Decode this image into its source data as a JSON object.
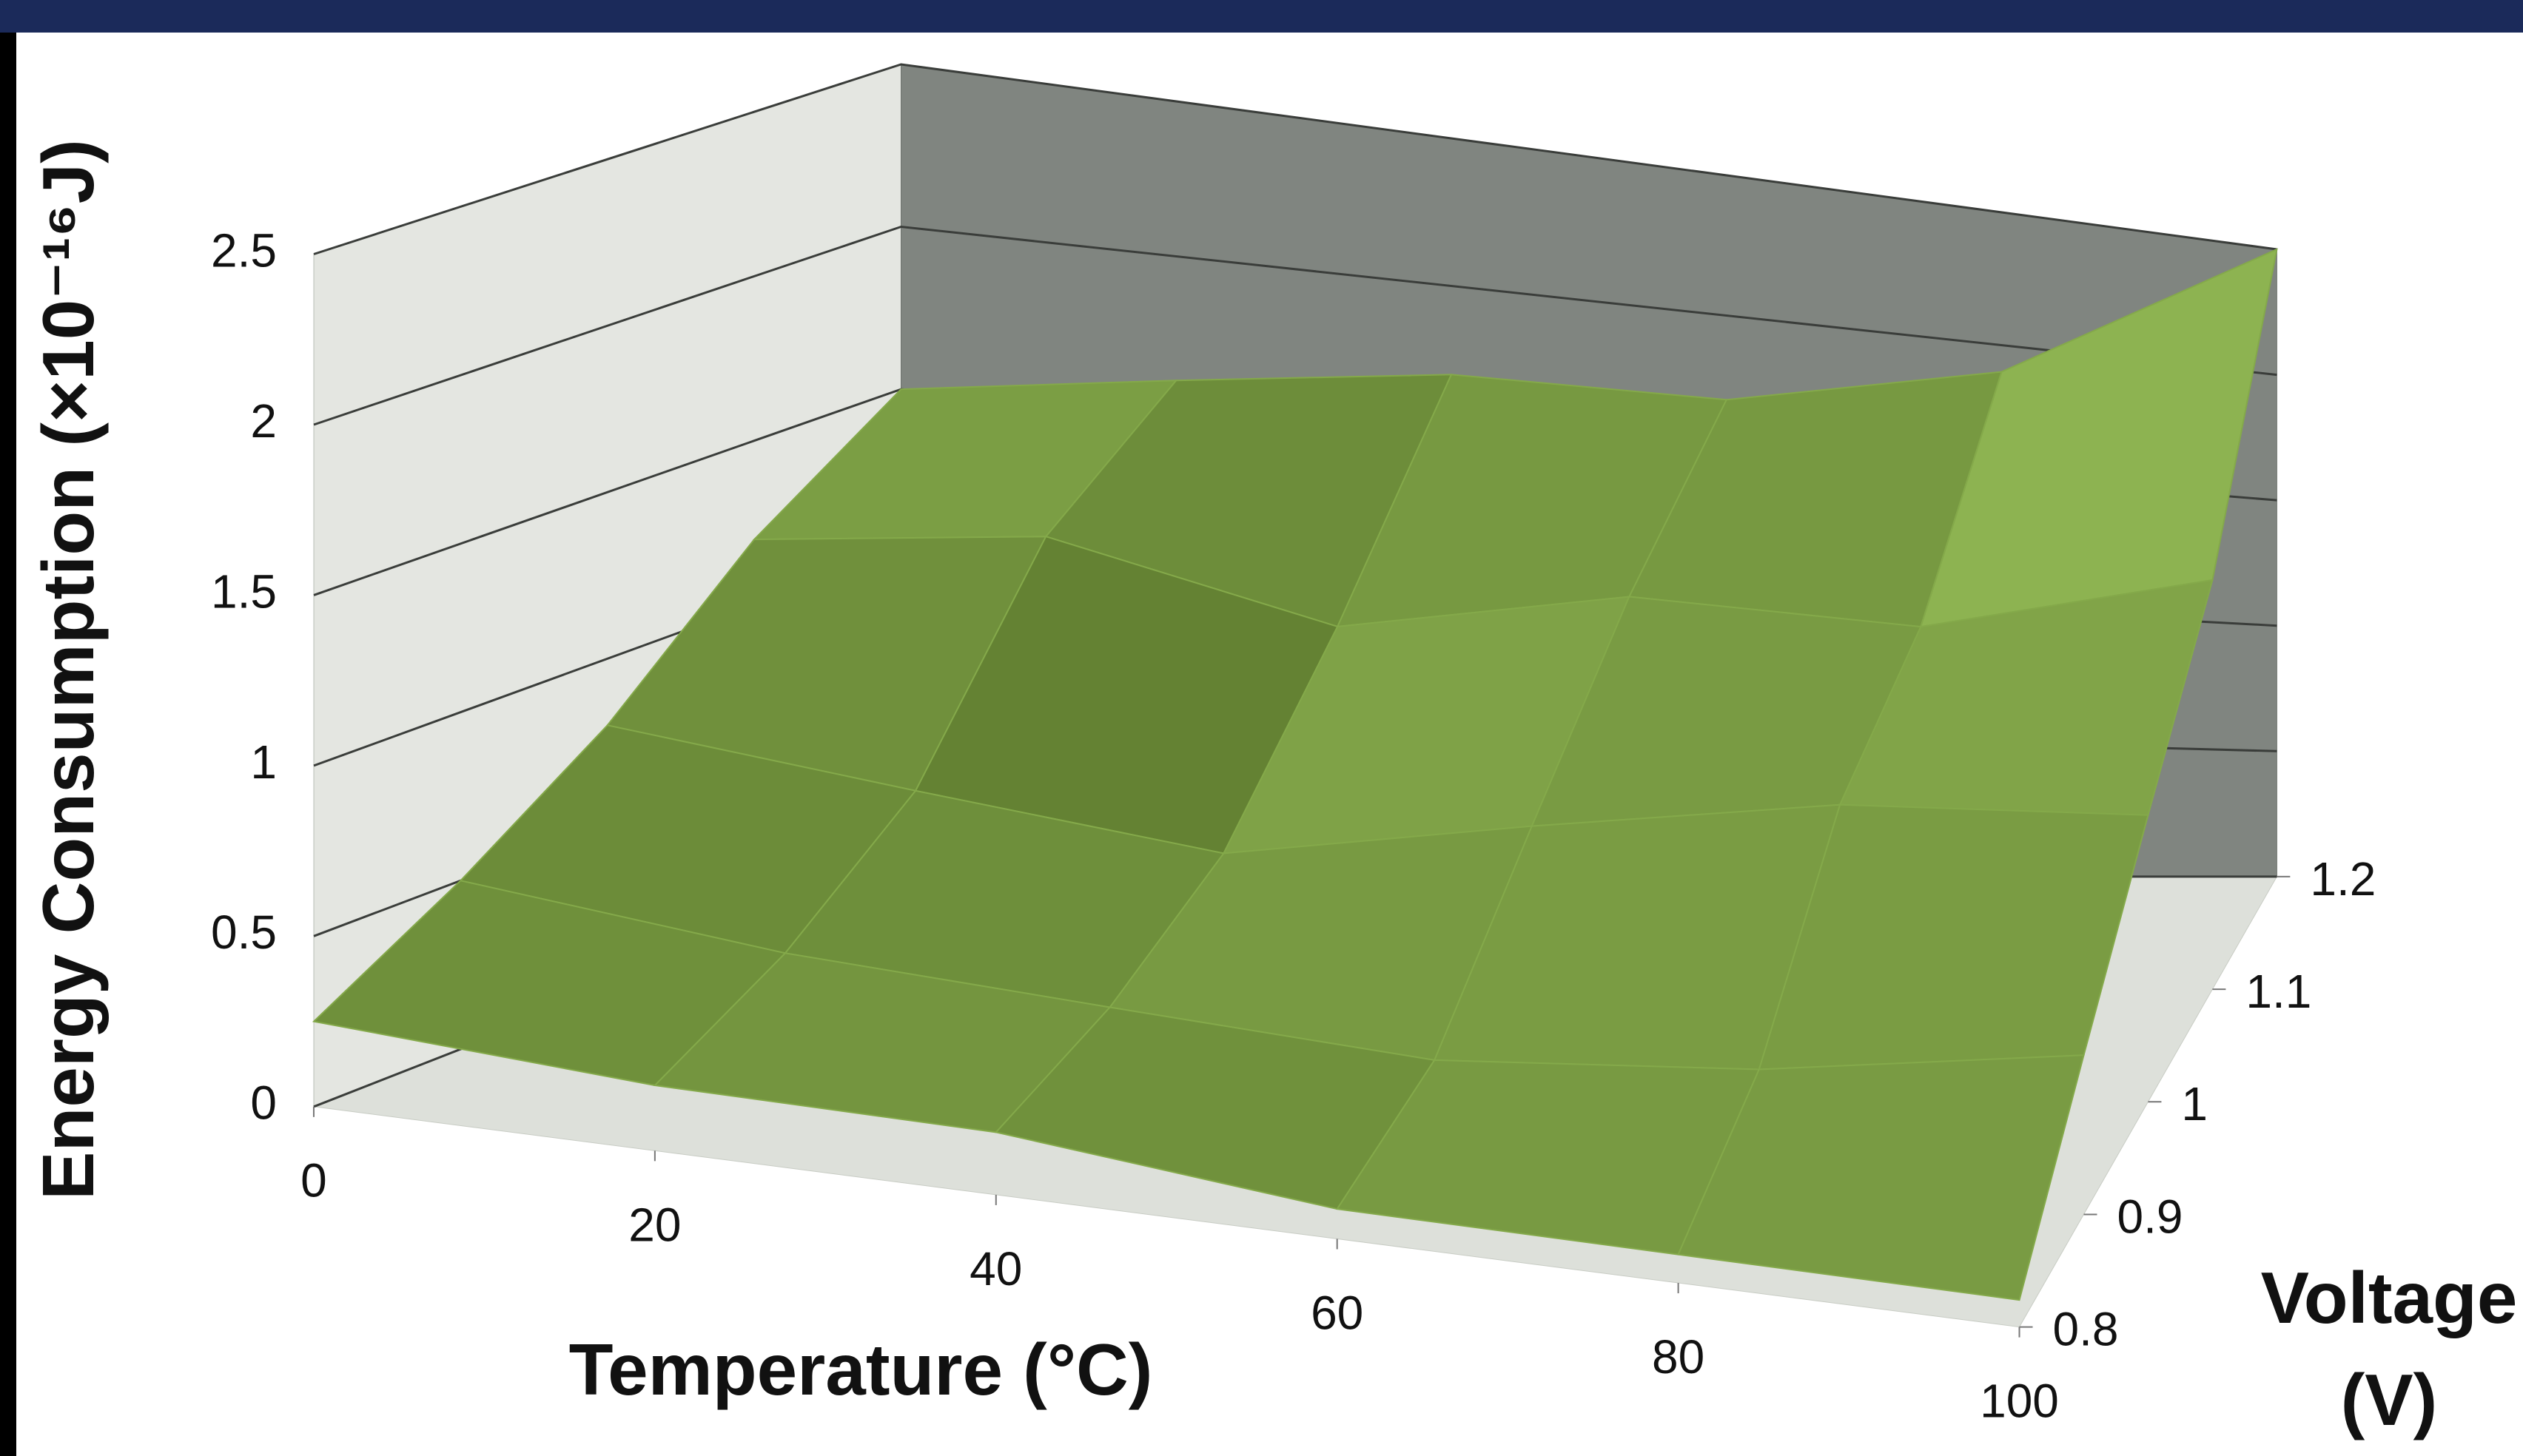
{
  "chart_data": {
    "type": "surface",
    "x_label": "Temperature (°C)",
    "y_label": [
      "Voltage",
      "(V)"
    ],
    "z_label": "Energy Consumption (×10⁻¹⁶J)",
    "x": [
      0,
      20,
      40,
      60,
      80,
      100
    ],
    "y": [
      0.8,
      0.9,
      1,
      1.1,
      1.2
    ],
    "values": [
      [
        0.25,
        0.2,
        0.2,
        0.1,
        0.1,
        0.1
      ],
      [
        0.5,
        0.4,
        0.35,
        0.3,
        0.4,
        0.6
      ],
      [
        0.8,
        0.7,
        0.6,
        0.8,
        1.0,
        1.1
      ],
      [
        1.2,
        1.3,
        1.1,
        1.3,
        1.3,
        1.6
      ],
      [
        1.5,
        1.6,
        1.7,
        1.7,
        1.9,
        2.5
      ]
    ],
    "color": "#7f9e44",
    "xlim": [
      0,
      100
    ],
    "xticks": [
      0,
      20,
      40,
      60,
      80,
      100
    ],
    "ylim": [
      0.8,
      1.2
    ],
    "yticks": [
      0.8,
      0.9,
      1,
      1.1,
      1.2
    ],
    "zlim": [
      0,
      2.5
    ],
    "zticks": [
      0,
      0.5,
      1,
      1.5,
      2,
      2.5
    ],
    "grid": true
  }
}
